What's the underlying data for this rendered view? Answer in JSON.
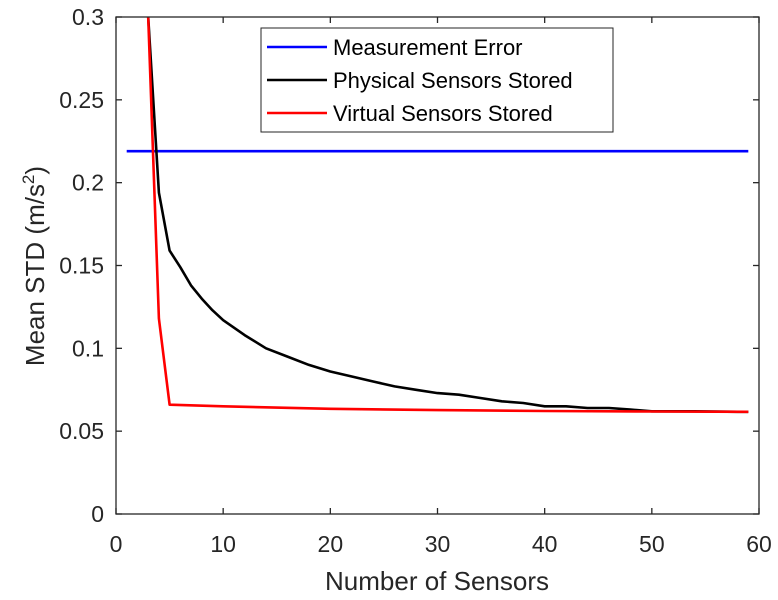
{
  "chart_data": {
    "type": "line",
    "title": "",
    "xlabel": "Number of Sensors",
    "ylabel": "Mean STD (m/s²)",
    "ylabel_parts": {
      "main": "Mean STD (m/s",
      "sup": "2",
      "tail": ")"
    },
    "xlim": [
      0,
      60
    ],
    "ylim": [
      0,
      0.3
    ],
    "xticks": [
      0,
      10,
      20,
      30,
      40,
      50,
      60
    ],
    "xtick_labels": [
      "0",
      "10",
      "20",
      "30",
      "40",
      "50",
      "60"
    ],
    "yticks": [
      0,
      0.05,
      0.1,
      0.15,
      0.2,
      0.25,
      0.3
    ],
    "ytick_labels": [
      "0",
      "0.05",
      "0.1",
      "0.15",
      "0.2",
      "0.25",
      "0.3"
    ],
    "grid": false,
    "legend_position": "top-center-inside",
    "series": [
      {
        "name": "Measurement Error",
        "color": "#0000ff",
        "x": [
          1,
          59
        ],
        "y": [
          0.219,
          0.219
        ]
      },
      {
        "name": "Physical Sensors Stored",
        "color": "#000000",
        "x": [
          3,
          4,
          5,
          6,
          7,
          8,
          9,
          10,
          12,
          14,
          16,
          18,
          20,
          22,
          24,
          26,
          28,
          30,
          32,
          34,
          36,
          38,
          40,
          42,
          44,
          46,
          48,
          50,
          52,
          54,
          56,
          58,
          59
        ],
        "y": [
          0.3,
          0.194,
          0.159,
          0.149,
          0.138,
          0.13,
          0.123,
          0.117,
          0.108,
          0.1,
          0.095,
          0.09,
          0.086,
          0.083,
          0.08,
          0.077,
          0.075,
          0.073,
          0.072,
          0.07,
          0.068,
          0.067,
          0.065,
          0.065,
          0.064,
          0.064,
          0.063,
          0.062,
          0.062,
          0.062,
          0.0618,
          0.0617,
          0.0617
        ]
      },
      {
        "name": "Virtual Sensors Stored",
        "color": "#ff0000",
        "x": [
          3,
          4,
          5,
          10,
          20,
          30,
          40,
          50,
          59
        ],
        "y": [
          0.3,
          0.118,
          0.066,
          0.065,
          0.0635,
          0.0627,
          0.0622,
          0.0619,
          0.0617
        ]
      }
    ]
  },
  "legend": {
    "items": [
      {
        "label": "Measurement Error",
        "color": "#0000ff"
      },
      {
        "label": "Physical Sensors Stored",
        "color": "#000000"
      },
      {
        "label": "Virtual Sensors Stored",
        "color": "#ff0000"
      }
    ]
  }
}
